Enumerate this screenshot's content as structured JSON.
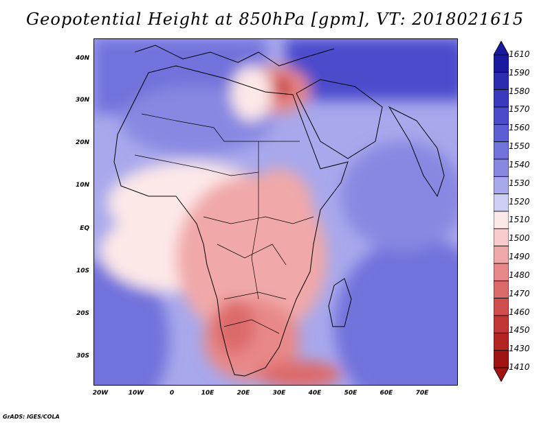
{
  "title": "Geopotential Height at 850hPa [gpm], VT: 2018021615",
  "map": {
    "variable": "Geopotential Height",
    "level": "850hPa",
    "units": "gpm",
    "valid_time": "2018021615",
    "lat_labels": [
      "40N",
      "30N",
      "20N",
      "10N",
      "EQ",
      "10S",
      "20S",
      "30S"
    ],
    "lon_labels": [
      "20W",
      "10W",
      "0",
      "10E",
      "20E",
      "30E",
      "40E",
      "50E",
      "60E",
      "70E"
    ]
  },
  "colorbar": {
    "levels": [
      "1610",
      "1590",
      "1580",
      "1570",
      "1560",
      "1550",
      "1540",
      "1530",
      "1520",
      "1510",
      "1500",
      "1490",
      "1480",
      "1470",
      "1460",
      "1450",
      "1430",
      "1410"
    ],
    "colors": [
      "#1a1aa0",
      "#2c2cb0",
      "#3a3ac0",
      "#4b4bcc",
      "#5e5ed4",
      "#7272dc",
      "#8888e2",
      "#a8a8ec",
      "#cfcff6",
      "#fde8e8",
      "#f8cccc",
      "#f0a8a8",
      "#e88888",
      "#dd6a6a",
      "#d04e4e",
      "#c43636",
      "#b42424",
      "#a01414"
    ]
  },
  "credit": "GrADS: IGES/COLA"
}
